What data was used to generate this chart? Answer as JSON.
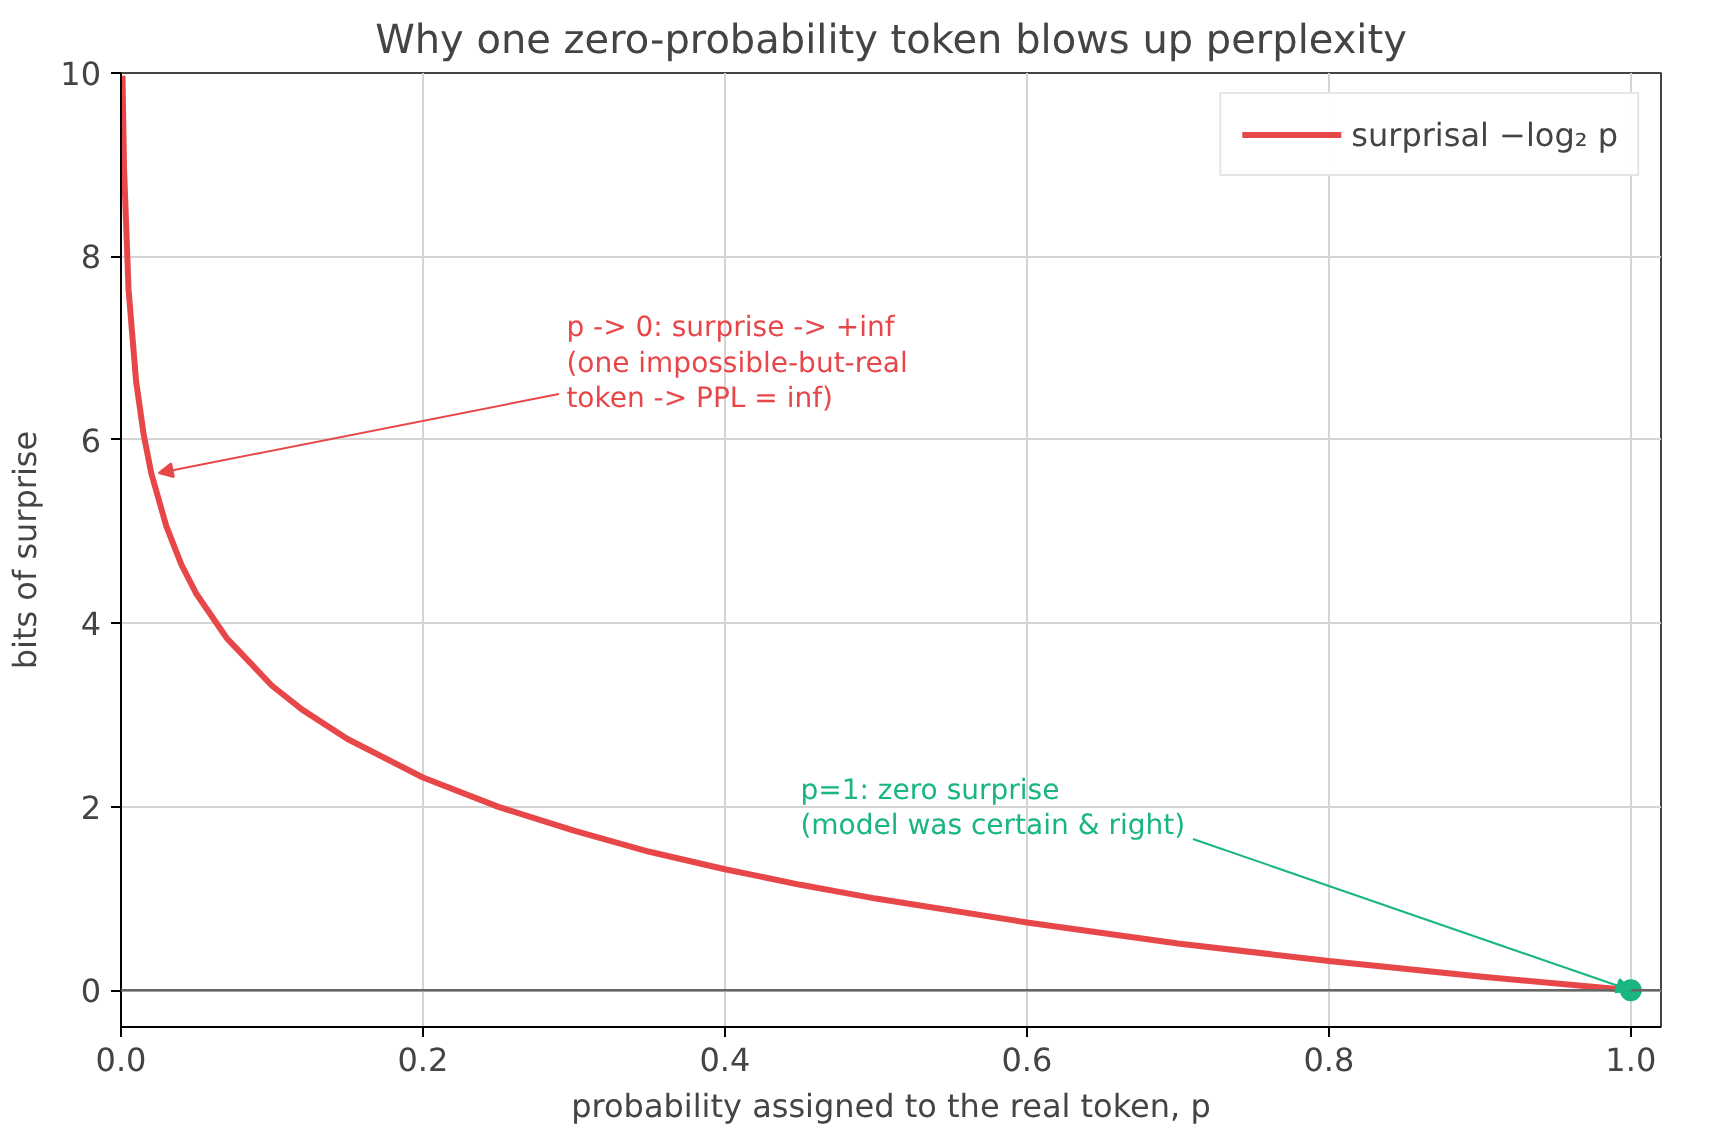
{
  "chart_data": {
    "type": "line",
    "title": "Why one zero-probability token blows up perplexity",
    "xlabel": "probability assigned to the real token, p",
    "ylabel": "bits of surprise",
    "xlim": [
      0,
      1.02
    ],
    "ylim": [
      -0.4,
      10
    ],
    "xticks": [
      {
        "value": 0,
        "label": "0.0"
      },
      {
        "value": 0.2,
        "label": "0.2"
      },
      {
        "value": 0.4,
        "label": "0.4"
      },
      {
        "value": 0.6,
        "label": "0.6"
      },
      {
        "value": 0.8,
        "label": "0.8"
      },
      {
        "value": 1,
        "label": "1.0"
      }
    ],
    "yticks": [
      0,
      2,
      4,
      6,
      8,
      10
    ],
    "series": [
      {
        "name": "surprisal −log₂ p",
        "color": "#e8474a",
        "x": [
          0.001,
          0.002,
          0.005,
          0.01,
          0.015,
          0.02,
          0.03,
          0.04,
          0.05,
          0.07,
          0.1,
          0.12,
          0.15,
          0.2,
          0.25,
          0.3,
          0.35,
          0.4,
          0.45,
          0.5,
          0.6,
          0.7,
          0.8,
          0.9,
          1.0
        ],
        "values": [
          9.97,
          8.97,
          7.64,
          6.64,
          6.06,
          5.64,
          5.06,
          4.64,
          4.32,
          3.84,
          3.32,
          3.06,
          2.74,
          2.32,
          2.0,
          1.74,
          1.51,
          1.32,
          1.15,
          1.0,
          0.74,
          0.51,
          0.32,
          0.15,
          0
        ]
      },
      {
        "type": "scatter",
        "color": "#19b67f",
        "x": [
          1.0
        ],
        "values": [
          0
        ]
      }
    ],
    "ref_lines": [
      {
        "axis": "y",
        "value": 0,
        "color": "#666666"
      }
    ],
    "annotations": [
      {
        "text": "p -> 0: surprise -> +inf\n(one impossible-but-real\ntoken -> PPL = inf)",
        "x": 0.025,
        "y": 5.64
      },
      {
        "text": "p=1: zero surprise\n(model was certain & right)",
        "x": 1.0,
        "y": 0
      }
    ],
    "grid": true,
    "legend": "top right"
  }
}
